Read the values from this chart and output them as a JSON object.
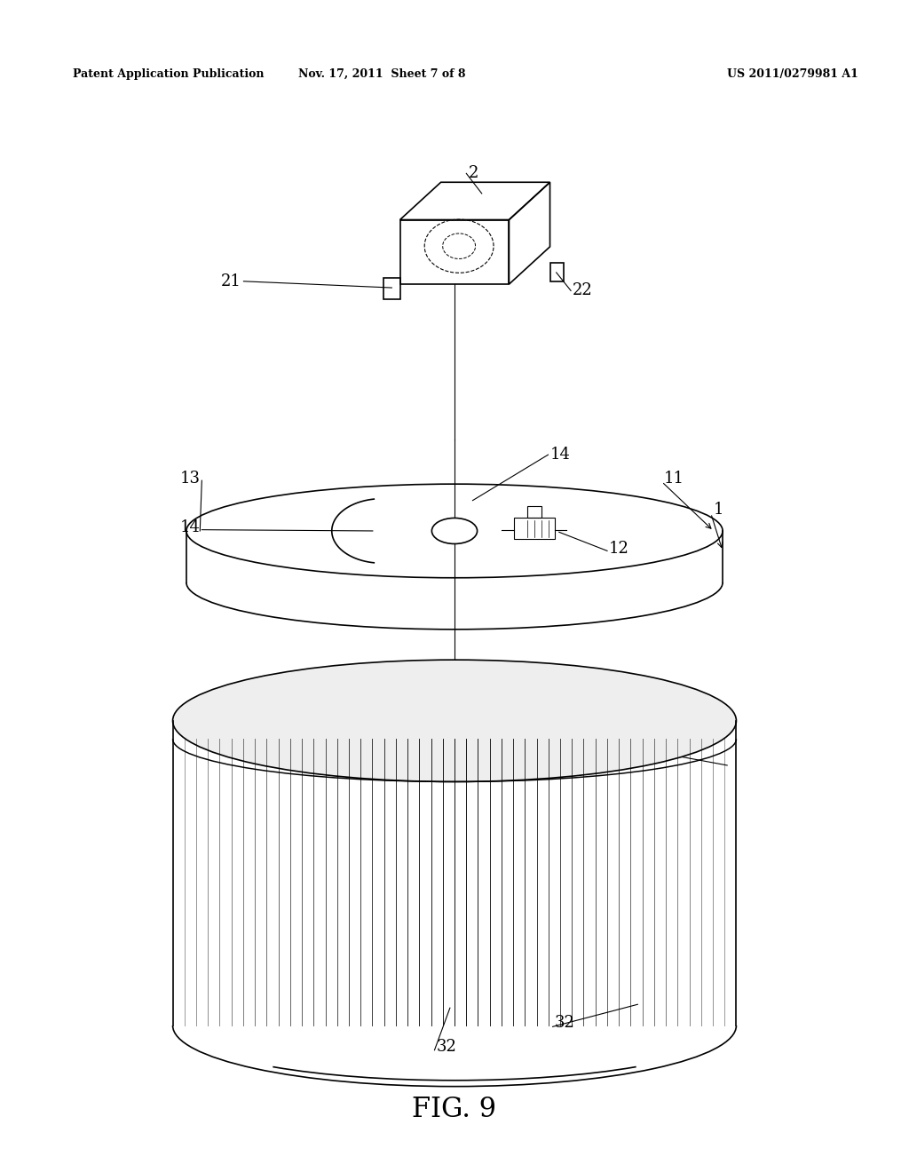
{
  "bg_color": "#ffffff",
  "header_left": "Patent Application Publication",
  "header_mid": "Nov. 17, 2011  Sheet 7 of 8",
  "header_right": "US 2011/0279981 A1",
  "figure_label": "FIG. 9"
}
